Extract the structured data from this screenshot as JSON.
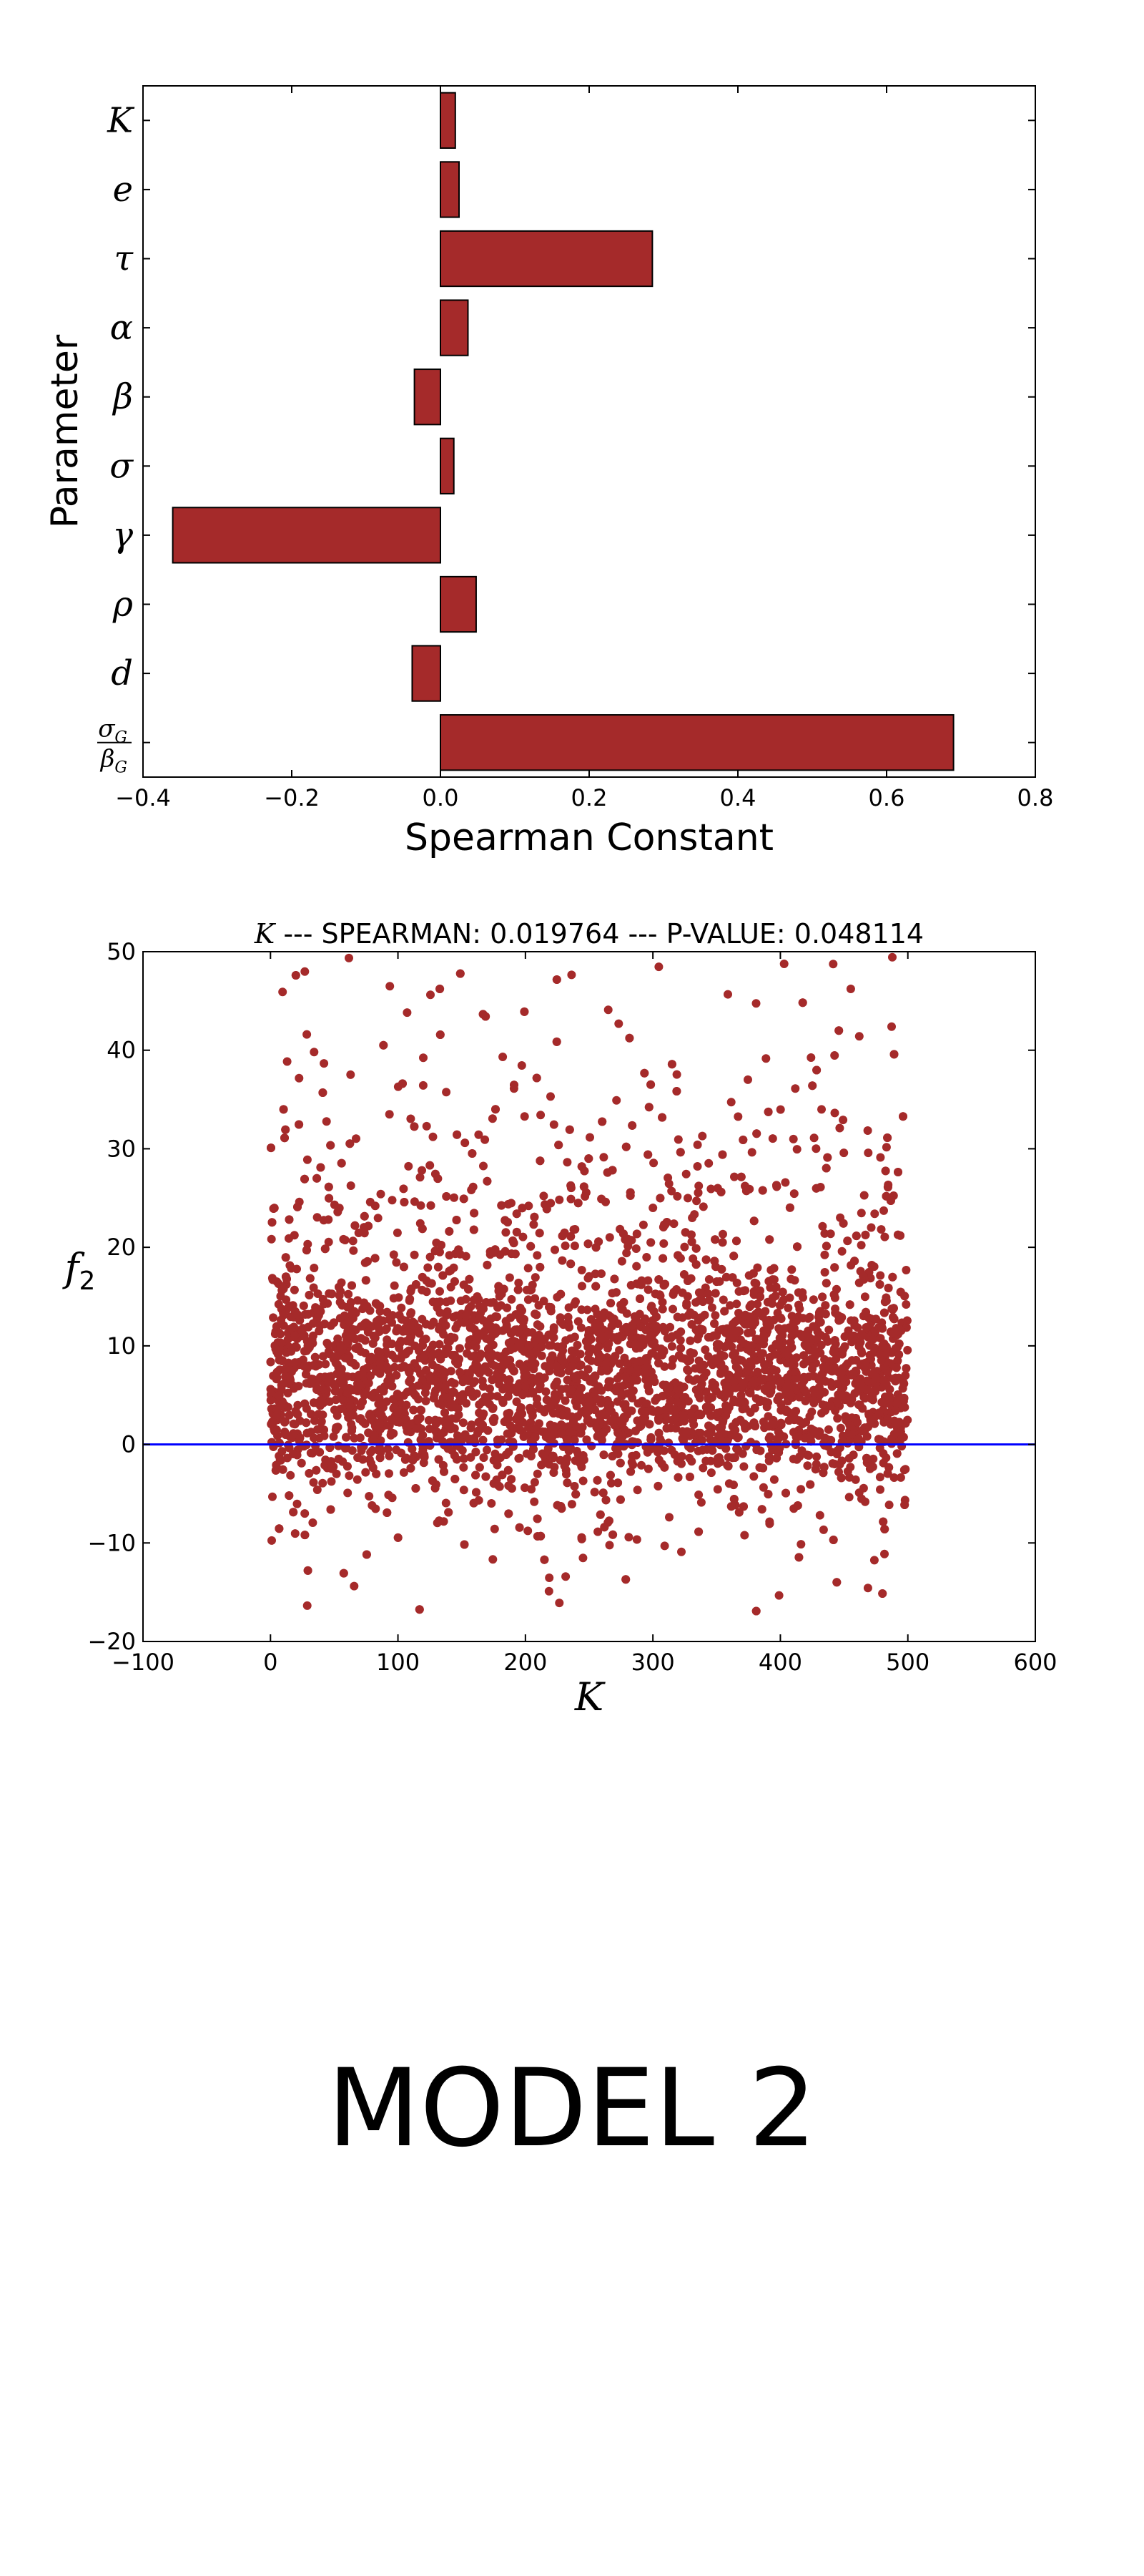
{
  "colors": {
    "bar": "#a52a2a",
    "scatter": "#a52a2a",
    "zero_line": "#0000ff",
    "frame": "#000000"
  },
  "chart_data": [
    {
      "type": "bar",
      "orientation": "horizontal",
      "categories": [
        "K",
        "e",
        "τ",
        "α",
        "β",
        "σ",
        "γ",
        "ρ",
        "d",
        "σ_G/β_G"
      ],
      "values": [
        0.02,
        0.025,
        0.285,
        0.037,
        -0.035,
        0.018,
        -0.36,
        0.048,
        -0.038,
        0.69
      ],
      "xlabel": "Spearman Constant",
      "ylabel": "Parameter",
      "xlim": [
        -0.4,
        0.8
      ],
      "xticks": [
        "−0.4",
        "−0.2",
        "0.0",
        "0.2",
        "0.4",
        "0.6",
        "0.8"
      ],
      "grid": false
    },
    {
      "type": "scatter",
      "title_symbol": "K",
      "title": " --- SPEARMAN: 0.019764 --- P-VALUE: 0.048114",
      "xlabel": "K",
      "ylabel_symbol": "f",
      "ylabel_subscript": "2",
      "xlim": [
        -100,
        600
      ],
      "ylim": [
        -20,
        50
      ],
      "xticks": [
        "−100",
        "0",
        "100",
        "200",
        "300",
        "400",
        "500",
        "600"
      ],
      "yticks": [
        "−20",
        "−10",
        "0",
        "10",
        "20",
        "30",
        "40",
        "50"
      ],
      "points_sampled": 5000,
      "x_range_of_points": [
        0,
        500
      ],
      "dense_band": [
        -1,
        15
      ],
      "reference_line_y": 0,
      "grid": false
    }
  ],
  "model_label": "MODEL 2"
}
